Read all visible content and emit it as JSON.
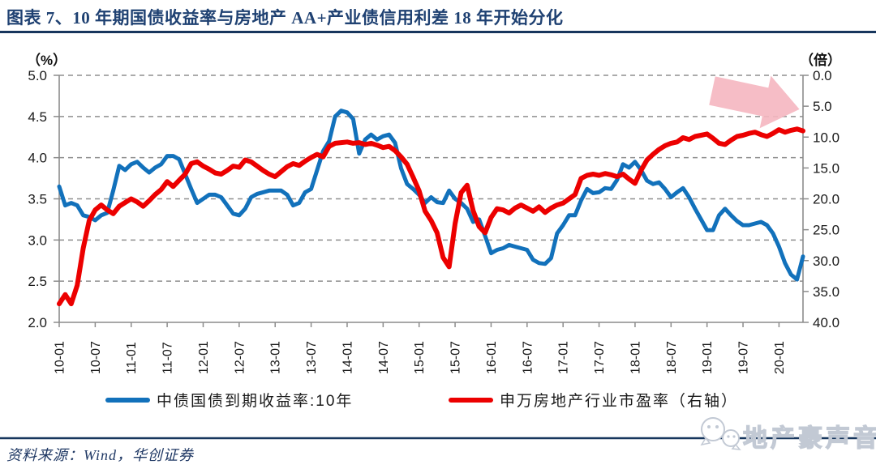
{
  "header": {
    "title": "图表 7、10 年期国债收益率与房地产 AA+产业债信用利差 18 年开始分化"
  },
  "chart_data": {
    "type": "line",
    "title": "10年期国债收益率与房地产AA+产业债信用利差18年开始分化",
    "x_start": "2010-01",
    "x_end": "2020-05",
    "x_frequency": "monthly",
    "x_tick_labels": [
      "10-01",
      "10-07",
      "11-01",
      "11-07",
      "12-01",
      "12-07",
      "13-01",
      "13-07",
      "14-01",
      "14-07",
      "15-01",
      "15-07",
      "16-01",
      "16-07",
      "17-01",
      "17-07",
      "18-01",
      "18-07",
      "19-01",
      "19-07",
      "20-01"
    ],
    "left_axis": {
      "unit": "（%）",
      "min": 2.0,
      "max": 5.0,
      "tick_labels": [
        "5.0",
        "4.5",
        "4.0",
        "3.5",
        "3.0",
        "2.5",
        "2.0"
      ]
    },
    "right_axis": {
      "unit": "（倍）",
      "min": 0.0,
      "max": 40.0,
      "inverted": true,
      "tick_labels": [
        "0.0",
        "5.0",
        "10.0",
        "15.0",
        "20.0",
        "25.0",
        "30.0",
        "35.0",
        "40.0"
      ]
    },
    "grid": "horizontal-dashed",
    "legend_position": "bottom",
    "series": [
      {
        "name": "中债国债到期收益率:10年",
        "axis": "left",
        "color": "#1271BB",
        "values": [
          3.65,
          3.42,
          3.45,
          3.42,
          3.3,
          3.28,
          3.24,
          3.3,
          3.33,
          3.6,
          3.9,
          3.85,
          3.92,
          3.95,
          3.88,
          3.82,
          3.88,
          3.92,
          4.02,
          4.02,
          3.98,
          3.8,
          3.62,
          3.45,
          3.5,
          3.55,
          3.55,
          3.52,
          3.42,
          3.32,
          3.3,
          3.38,
          3.52,
          3.56,
          3.58,
          3.6,
          3.6,
          3.6,
          3.55,
          3.42,
          3.45,
          3.58,
          3.62,
          3.85,
          4.08,
          4.2,
          4.5,
          4.57,
          4.55,
          4.47,
          4.05,
          4.22,
          4.28,
          4.22,
          4.26,
          4.28,
          4.18,
          3.87,
          3.68,
          3.62,
          3.55,
          3.45,
          3.52,
          3.46,
          3.45,
          3.6,
          3.5,
          3.45,
          3.38,
          3.22,
          3.25,
          3.05,
          2.84,
          2.88,
          2.9,
          2.94,
          2.92,
          2.9,
          2.88,
          2.76,
          2.72,
          2.71,
          2.78,
          3.08,
          3.18,
          3.3,
          3.3,
          3.48,
          3.62,
          3.57,
          3.58,
          3.63,
          3.62,
          3.73,
          3.92,
          3.88,
          3.95,
          3.85,
          3.72,
          3.68,
          3.7,
          3.62,
          3.52,
          3.58,
          3.63,
          3.52,
          3.38,
          3.25,
          3.12,
          3.12,
          3.3,
          3.38,
          3.3,
          3.23,
          3.18,
          3.18,
          3.2,
          3.22,
          3.18,
          3.08,
          2.92,
          2.72,
          2.58,
          2.52,
          2.8
        ]
      },
      {
        "name": "申万房地产行业市盈率（右轴）",
        "axis": "right",
        "color": "#EC0000",
        "values": [
          37.0,
          35.5,
          37.0,
          34.0,
          28.0,
          23.5,
          21.8,
          21.0,
          21.8,
          22.4,
          21.2,
          20.6,
          20.0,
          20.5,
          21.2,
          20.3,
          19.3,
          18.5,
          17.2,
          18.0,
          17.0,
          16.0,
          14.3,
          14.0,
          14.7,
          15.2,
          15.8,
          16.0,
          15.4,
          14.7,
          14.9,
          13.7,
          14.0,
          14.7,
          15.4,
          16.0,
          16.4,
          15.6,
          14.8,
          14.3,
          14.6,
          13.9,
          13.3,
          12.8,
          13.2,
          11.5,
          11.0,
          10.9,
          10.8,
          11.0,
          10.9,
          11.2,
          11.0,
          11.3,
          11.7,
          11.5,
          12.2,
          13.2,
          14.4,
          16.5,
          18.7,
          22.0,
          23.5,
          25.5,
          29.5,
          31.0,
          24.0,
          19.0,
          17.8,
          21.9,
          24.5,
          25.5,
          23.0,
          21.6,
          21.8,
          22.3,
          21.5,
          21.0,
          21.5,
          22.0,
          21.3,
          22.2,
          21.5,
          21.0,
          20.7,
          20.0,
          19.3,
          16.7,
          16.2,
          16.0,
          16.2,
          15.9,
          16.1,
          16.4,
          16.0,
          16.8,
          17.5,
          15.4,
          13.7,
          12.8,
          12.0,
          11.4,
          11.0,
          10.8,
          10.1,
          10.4,
          9.9,
          9.7,
          9.5,
          10.2,
          11.0,
          11.2,
          10.5,
          9.9,
          9.7,
          9.4,
          9.2,
          9.6,
          9.9,
          9.4,
          8.8,
          9.2,
          8.9,
          8.7,
          9.0
        ]
      }
    ],
    "annotation": {
      "shape": "block-arrow",
      "direction": "right-down",
      "color": "#F5B6C0"
    }
  },
  "footer": {
    "source": "资料来源：Wind，华创证券",
    "watermark": "地产豪声音"
  }
}
